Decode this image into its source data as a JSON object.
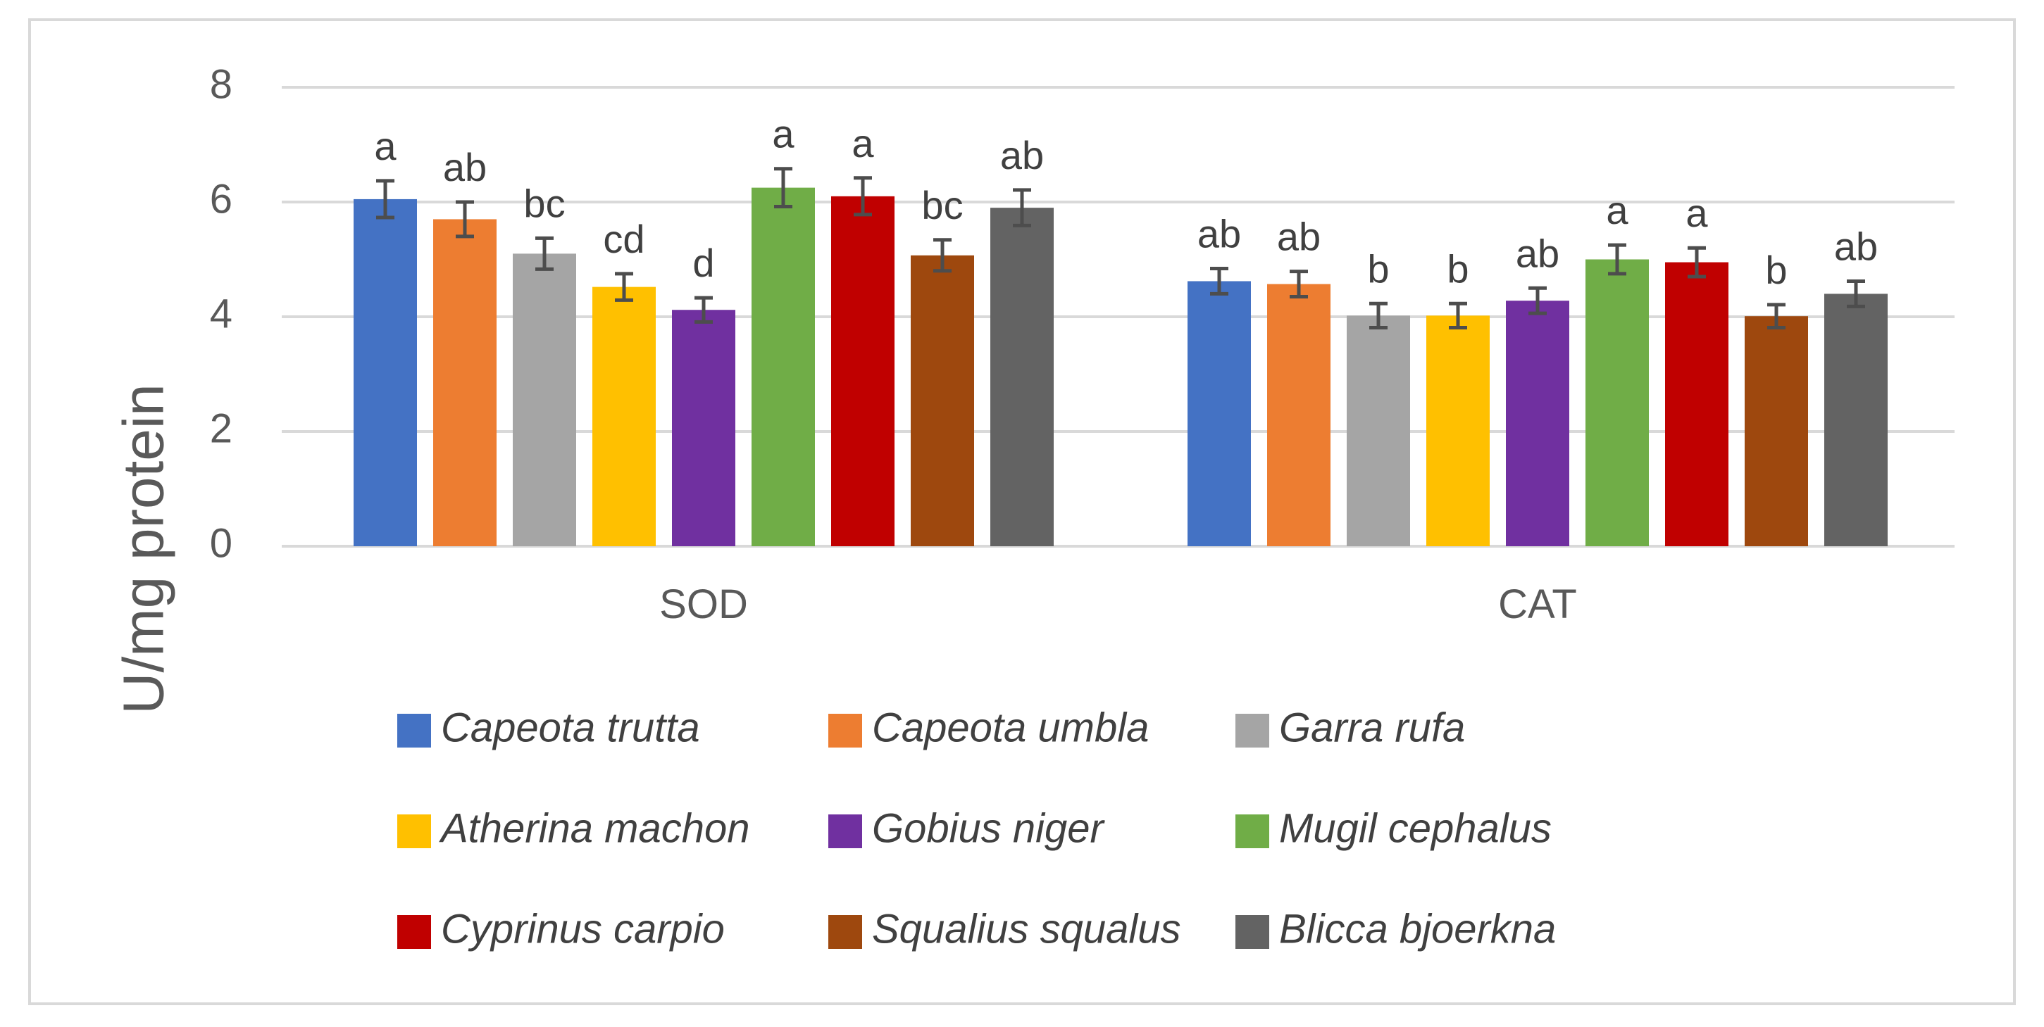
{
  "chart_data": {
    "type": "bar",
    "title": "",
    "xlabel": "",
    "ylabel": "U/mg protein",
    "ylim": [
      0,
      8
    ],
    "yticks": [
      0,
      2,
      4,
      6,
      8
    ],
    "grid": true,
    "legend_position": "bottom",
    "categories": [
      "SOD",
      "CAT"
    ],
    "series": [
      {
        "name": "Capeota trutta",
        "color": "#4472C4",
        "values": [
          6.05,
          4.62
        ],
        "errors": [
          0.32,
          0.22
        ],
        "letters": [
          "a",
          "ab"
        ]
      },
      {
        "name": "Capeota umbla",
        "color": "#ED7D31",
        "values": [
          5.7,
          4.57
        ],
        "errors": [
          0.3,
          0.22
        ],
        "letters": [
          "ab",
          "ab"
        ]
      },
      {
        "name": "Garra rufa",
        "color": "#A5A5A5",
        "values": [
          5.1,
          4.02
        ],
        "errors": [
          0.27,
          0.21
        ],
        "letters": [
          "bc",
          "b"
        ]
      },
      {
        "name": "Atherina machon",
        "color": "#FFC000",
        "values": [
          4.52,
          4.02
        ],
        "errors": [
          0.23,
          0.21
        ],
        "letters": [
          "cd",
          "b"
        ]
      },
      {
        "name": "Gobius niger",
        "color": "#7030A0",
        "values": [
          4.12,
          4.28
        ],
        "errors": [
          0.21,
          0.22
        ],
        "letters": [
          "d",
          "ab"
        ]
      },
      {
        "name": "Mugil cephalus",
        "color": "#70AD47",
        "values": [
          6.25,
          5.0
        ],
        "errors": [
          0.33,
          0.25
        ],
        "letters": [
          "a",
          "a"
        ]
      },
      {
        "name": "Cyprinus carpio",
        "color": "#C00000",
        "values": [
          6.1,
          4.95
        ],
        "errors": [
          0.32,
          0.25
        ],
        "letters": [
          "a",
          "a"
        ]
      },
      {
        "name": "Squalius squalus",
        "color": "#9E480E",
        "values": [
          5.07,
          4.01
        ],
        "errors": [
          0.27,
          0.2
        ],
        "letters": [
          "bc",
          "b"
        ]
      },
      {
        "name": "Blicca bjoerkna",
        "color": "#636363",
        "values": [
          5.9,
          4.4
        ],
        "errors": [
          0.31,
          0.22
        ],
        "letters": [
          "ab",
          "ab"
        ]
      }
    ]
  },
  "colors": {
    "gridline": "#D9D9D9",
    "axis_text": "#595959",
    "text": "#404040",
    "error_bar": "#4D4D4D",
    "frame": "#D9D9D9"
  }
}
